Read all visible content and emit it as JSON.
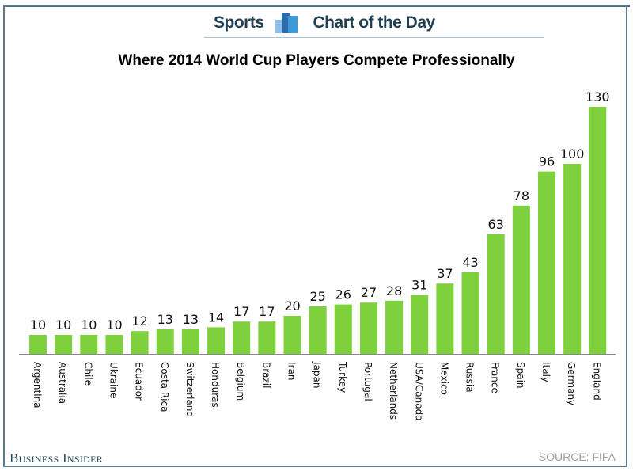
{
  "header": {
    "section": "Sports",
    "series": "Chart of the Day",
    "logo_icon": "bar-chart-icon"
  },
  "footer": {
    "brand": "Business Insider",
    "source": "SOURCE: FIFA"
  },
  "colors": {
    "bar": "#7ed13d",
    "header_text": "#1f3f52",
    "frame": "#5d7b88"
  },
  "chart_data": {
    "type": "bar",
    "title": "Where 2014 World Cup Players Compete Professionally",
    "xlabel": "",
    "ylabel": "",
    "categories": [
      "Argentina",
      "Australia",
      "Chile",
      "Ukraine",
      "Ecuador",
      "Costa Rica",
      "Switzerland",
      "Honduras",
      "Belgium",
      "Brazil",
      "Iran",
      "Japan",
      "Turkey",
      "Portugal",
      "Netherlands",
      "USA/Canada",
      "Mexico",
      "Russia",
      "France",
      "Spain",
      "Italy",
      "Germany",
      "England"
    ],
    "values": [
      10,
      10,
      10,
      10,
      12,
      13,
      13,
      14,
      17,
      17,
      20,
      25,
      26,
      27,
      28,
      31,
      37,
      43,
      63,
      78,
      96,
      100,
      130
    ],
    "data_labels": true,
    "grid": false,
    "ylim": [
      0,
      130
    ]
  }
}
